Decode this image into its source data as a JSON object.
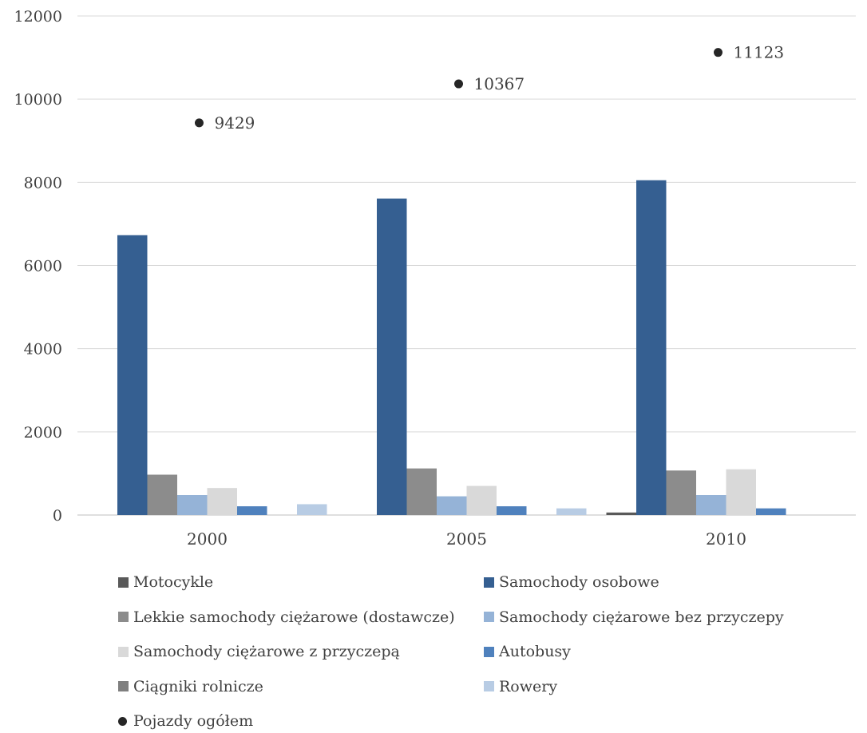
{
  "chart_data": {
    "type": "bar",
    "categories": [
      "2000",
      "2005",
      "2010"
    ],
    "ylim": [
      0,
      12000
    ],
    "yticks": [
      0,
      2000,
      4000,
      6000,
      8000,
      10000,
      12000
    ],
    "grid": true,
    "legend_position": "bottom",
    "series": [
      {
        "name": "Motocykle",
        "color": "#595959",
        "values": [
          0,
          0,
          60
        ]
      },
      {
        "name": "Samochody osobowe",
        "color": "#355f91",
        "values": [
          6730,
          7610,
          8050
        ]
      },
      {
        "name": "Lekkie samochody ciężarowe (dostawcze)",
        "color": "#8c8c8c",
        "values": [
          970,
          1120,
          1070
        ]
      },
      {
        "name": "Samochody ciężarowe bez przyczepy",
        "color": "#95b3d7",
        "values": [
          480,
          450,
          480
        ]
      },
      {
        "name": "Samochody ciężarowe z przyczepą",
        "color": "#d9d9d9",
        "values": [
          650,
          700,
          1100
        ]
      },
      {
        "name": "Autobusy",
        "color": "#4f81bd",
        "values": [
          210,
          210,
          160
        ]
      },
      {
        "name": "Ciągniki rolnicze",
        "color": "#7f7f7f",
        "values": [
          0,
          0,
          0
        ]
      },
      {
        "name": "Rowery",
        "color": "#b8cce4",
        "values": [
          260,
          160,
          0
        ]
      }
    ],
    "total_series": {
      "name": "Pojazdy ogółem",
      "color": "#262626",
      "values": [
        9429,
        10367,
        11123
      ]
    }
  }
}
